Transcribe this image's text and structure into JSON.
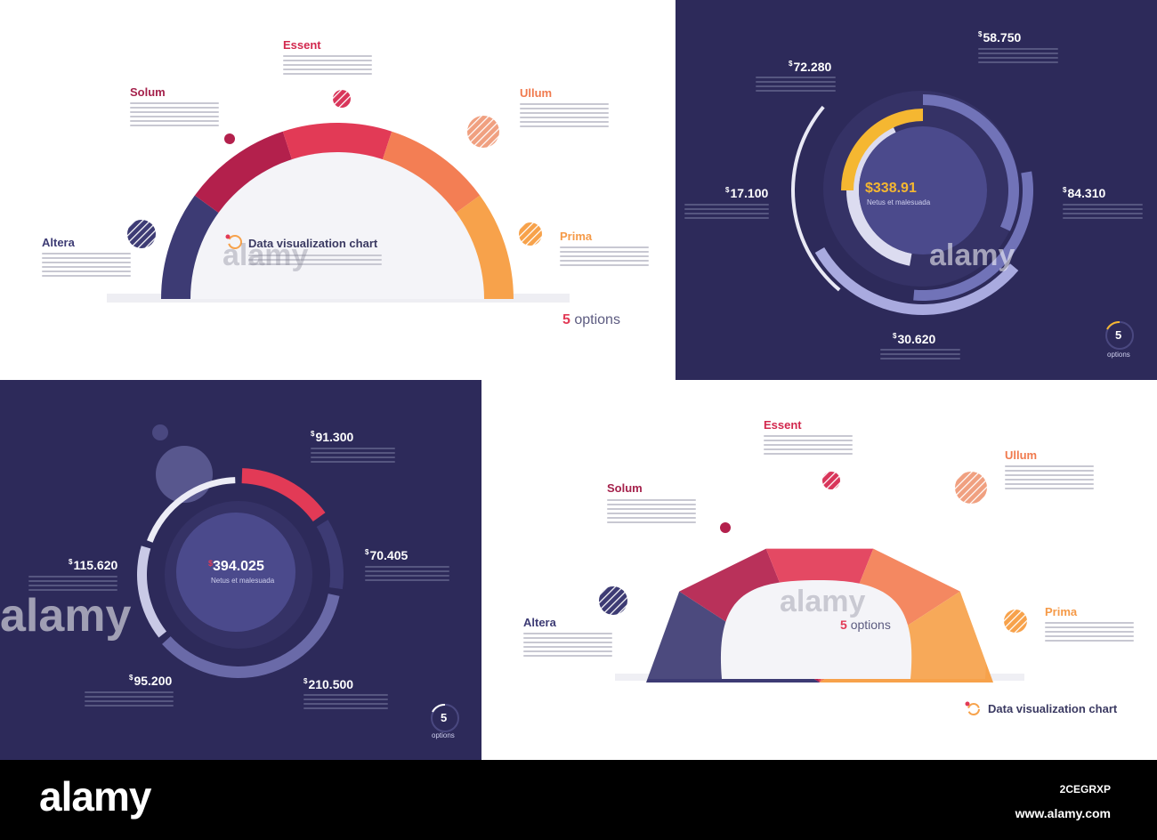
{
  "panels": {
    "p1": {
      "labels": {
        "essent": "Essent",
        "solum": "Solum",
        "ullum": "Ullum",
        "altera": "Altera",
        "prima": "Prima"
      },
      "center_title": "Data visualization chart",
      "options_count": "5",
      "options_word": "options"
    },
    "p2": {
      "values": {
        "v1": "58.750",
        "v2": "72.280",
        "v3": "17.100",
        "v4": "84.310",
        "v5": "30.620"
      },
      "center_value": "$338.91",
      "center_sub": "Netus et malesuada",
      "options_count": "5",
      "options_word": "options"
    },
    "p3": {
      "values": {
        "v1": "91.300",
        "v2": "70.405",
        "v3": "115.620",
        "v4": "95.200",
        "v5": "210.500"
      },
      "currency": "$",
      "center_value": "394.025",
      "center_sub": "Netus et malesuada",
      "options_count": "5",
      "options_word": "options"
    },
    "p4": {
      "labels": {
        "essent": "Essent",
        "solum": "Solum",
        "ullum": "Ullum",
        "altera": "Altera",
        "prima": "Prima"
      },
      "options_count": "5",
      "options_word": "options",
      "footer_title": "Data visualization chart"
    }
  },
  "watermark": {
    "brand": "alamy",
    "image_id": "2CEGRXP",
    "site": "www.alamy.com"
  },
  "colors": {
    "navy": "#3d3b74",
    "crimson": "#b3204c",
    "red": "#e23a56",
    "orange": "#f37e54",
    "amber": "#f7a24b",
    "yellow": "#f5b731",
    "periwinkle": "#7173b8",
    "lavender": "#a9aadf",
    "pale": "#e9e9f5",
    "dark_bg": "#2d2a5a"
  },
  "chart_data": [
    {
      "type": "semi-donut",
      "categories": [
        "Altera",
        "Solum",
        "Essent",
        "Ullum",
        "Prima"
      ],
      "values": [
        20,
        20,
        20,
        20,
        20
      ]
    },
    {
      "type": "radial",
      "categories": [
        "58.750",
        "72.280",
        "17.100",
        "84.310",
        "30.620"
      ],
      "values": [
        58.75,
        72.28,
        17.1,
        84.31,
        30.62
      ]
    },
    {
      "type": "donut",
      "categories": [
        "91.300",
        "70.405",
        "210.500",
        "95.200",
        "115.620"
      ],
      "values": [
        91.3,
        70.405,
        210.5,
        95.2,
        115.62
      ]
    },
    {
      "type": "semi-donut",
      "categories": [
        "Altera",
        "Solum",
        "Essent",
        "Ullum",
        "Prima"
      ],
      "values": [
        20,
        20,
        20,
        20,
        20
      ]
    }
  ]
}
